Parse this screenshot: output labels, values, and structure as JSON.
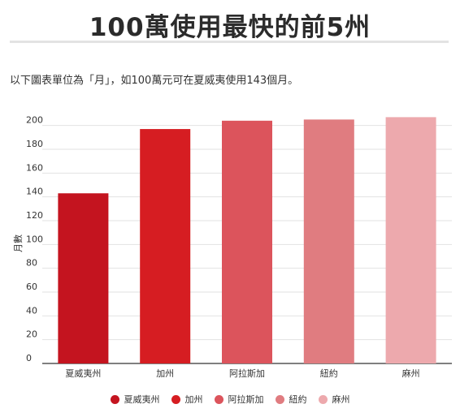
{
  "title": "100萬使用最快的前5州",
  "subtitle": "以下圖表單位為「月」，如100萬元可在夏威夷使用143個月。",
  "chart_data": {
    "type": "bar",
    "categories": [
      "夏威夷州",
      "加州",
      "阿拉斯加",
      "紐約",
      "麻州"
    ],
    "values": [
      143,
      197,
      204,
      205,
      207
    ],
    "colors": [
      "#c4141f",
      "#d61d22",
      "#dc545c",
      "#e07c80",
      "#eda9ad"
    ],
    "ylabel": "月數",
    "ylim": [
      0,
      210
    ],
    "yticks": [
      0,
      20,
      40,
      60,
      80,
      100,
      120,
      140,
      160,
      180,
      200
    ],
    "grid": true,
    "legend": "bottom"
  }
}
